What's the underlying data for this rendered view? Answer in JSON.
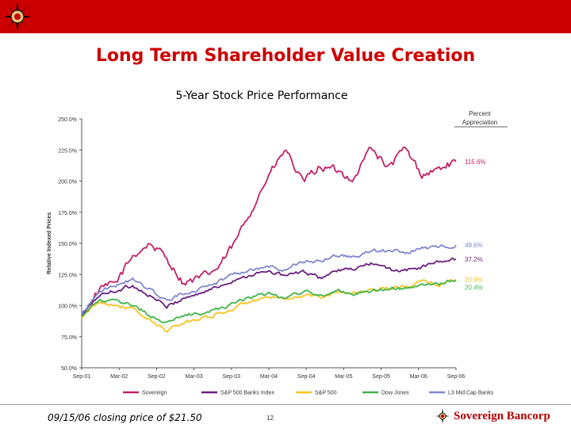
{
  "slide": {
    "title": "Long Term Shareholder Value Creation",
    "footer_note": "09/15/06 closing price of $21.50",
    "page_number": "12",
    "brand_name": "Sovereign Bancorp"
  },
  "colors": {
    "accent": "#cc0000",
    "sovereign": "#c0226b",
    "sp500banks": "#6a1f7f",
    "sp500": "#f6c324",
    "dowjones": "#3fb54a",
    "l3midcapbanks": "#8087cf"
  },
  "chart_data": {
    "type": "line",
    "title": "5-Year Stock Price Performance",
    "ylabel": "Relative Indexed Prices",
    "xlabel": "",
    "ylim": [
      50,
      250
    ],
    "yticks": [
      "250.0%",
      "225.0%",
      "200.0%",
      "175.0%",
      "150.0%",
      "125.0%",
      "100.0%",
      "75.0%",
      "50.0%"
    ],
    "ytick_values": [
      250,
      225,
      200,
      175,
      150,
      125,
      100,
      75,
      50
    ],
    "x_labels": [
      "Sep-01",
      "Mar-02",
      "Sep-02",
      "Mar-03",
      "Sep-03",
      "Mar-04",
      "Sep-04",
      "Mar-05",
      "Sep-05",
      "Mar-06",
      "Sep-06"
    ],
    "annotation_header": "Percent Appreciation",
    "legend_position": "bottom",
    "grid": false,
    "series": [
      {
        "name": "Sovereign",
        "key": "sovereign",
        "end_label": "115.6%",
        "values": [
          92,
          112,
          118,
          140,
          150,
          138,
          118,
          122,
          130,
          150,
          178,
          205,
          225,
          198,
          212,
          208,
          202,
          228,
          210,
          226,
          205,
          210,
          215.6
        ]
      },
      {
        "name": "S&P 500 Banks Index",
        "key": "sp500banks",
        "end_label": "37.2%",
        "values": [
          92,
          108,
          112,
          116,
          108,
          99,
          106,
          110,
          115,
          121,
          125,
          127,
          124,
          127,
          122,
          128,
          129,
          134,
          129,
          128,
          131,
          135,
          137.2
        ]
      },
      {
        "name": "S&P 500",
        "key": "sp500",
        "end_label": "20.9%",
        "values": [
          90,
          103,
          101,
          97,
          88,
          80,
          86,
          90,
          93,
          98,
          104,
          106,
          104,
          108,
          107,
          111,
          110,
          113,
          114,
          115,
          119,
          117,
          120.9
        ]
      },
      {
        "name": "Dow Jones",
        "key": "dowjones",
        "end_label": "20.4%",
        "values": [
          91,
          104,
          103,
          101,
          92,
          86,
          92,
          94,
          97,
          103,
          107,
          109,
          107,
          111,
          108,
          112,
          110,
          112,
          113,
          114,
          116,
          117,
          120.4
        ]
      },
      {
        "name": "L3 Mid Cap Banks",
        "key": "l3midcapbanks",
        "end_label": "48.6%",
        "values": [
          93,
          112,
          116,
          121,
          113,
          104,
          110,
          114,
          119,
          126,
          129,
          131,
          129,
          135,
          136,
          140,
          139,
          144,
          144,
          143,
          146,
          147,
          148.6
        ]
      }
    ]
  }
}
